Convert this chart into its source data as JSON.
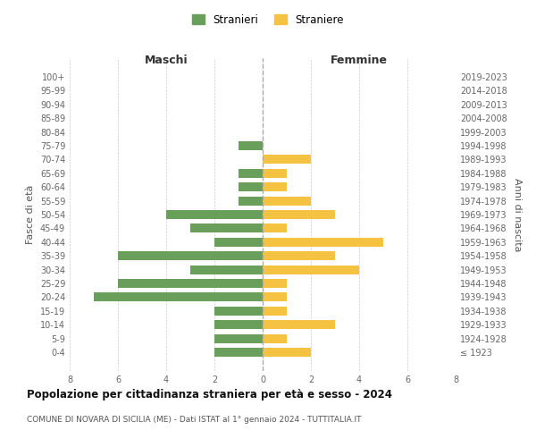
{
  "age_groups": [
    "100+",
    "95-99",
    "90-94",
    "85-89",
    "80-84",
    "75-79",
    "70-74",
    "65-69",
    "60-64",
    "55-59",
    "50-54",
    "45-49",
    "40-44",
    "35-39",
    "30-34",
    "25-29",
    "20-24",
    "15-19",
    "10-14",
    "5-9",
    "0-4"
  ],
  "birth_years": [
    "≤ 1923",
    "1924-1928",
    "1929-1933",
    "1934-1938",
    "1939-1943",
    "1944-1948",
    "1949-1953",
    "1954-1958",
    "1959-1963",
    "1964-1968",
    "1969-1973",
    "1974-1978",
    "1979-1983",
    "1984-1988",
    "1989-1993",
    "1994-1998",
    "1999-2003",
    "2004-2008",
    "2009-2013",
    "2014-2018",
    "2019-2023"
  ],
  "males": [
    0,
    0,
    0,
    0,
    0,
    1,
    0,
    1,
    1,
    1,
    4,
    3,
    2,
    6,
    3,
    6,
    7,
    2,
    2,
    2,
    2
  ],
  "females": [
    0,
    0,
    0,
    0,
    0,
    0,
    2,
    1,
    1,
    2,
    3,
    1,
    5,
    3,
    4,
    1,
    1,
    1,
    3,
    1,
    2
  ],
  "male_color": "#6a9e5b",
  "female_color": "#f5c242",
  "title": "Popolazione per cittadinanza straniera per età e sesso - 2024",
  "subtitle": "COMUNE DI NOVARA DI SICILIA (ME) - Dati ISTAT al 1° gennaio 2024 - TUTTITALIA.IT",
  "xlabel_left": "Maschi",
  "xlabel_right": "Femmine",
  "ylabel_left": "Fasce di età",
  "ylabel_right": "Anni di nascita",
  "legend_stranieri": "Stranieri",
  "legend_straniere": "Straniere",
  "xlim": 8,
  "background_color": "#ffffff",
  "grid_color": "#cccccc"
}
